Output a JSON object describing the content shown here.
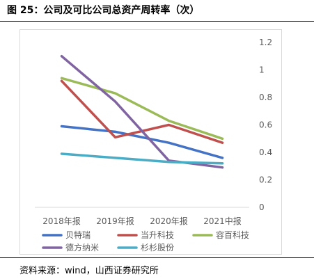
{
  "figure": {
    "title": "图 25：公司及可比公司总资产周转率（次）",
    "source": "资料来源：wind，山西证券研究所"
  },
  "chart_data": {
    "type": "line",
    "title": "",
    "xlabel": "",
    "ylabel": "",
    "categories": [
      "2018年报",
      "2019年报",
      "2020年报",
      "2021中报"
    ],
    "ylim": [
      0,
      1.2
    ],
    "yticks": [
      "0",
      "0.2",
      "0.4",
      "0.6",
      "0.8",
      "1",
      "1.2"
    ],
    "y_axis_side": "right",
    "grid": false,
    "legend_position": "bottom",
    "series": [
      {
        "name": "贝特瑞",
        "color": "#4472C4",
        "values": [
          0.59,
          0.55,
          0.47,
          0.36
        ]
      },
      {
        "name": "当升科技",
        "color": "#C0504D",
        "values": [
          0.92,
          0.51,
          0.6,
          0.47
        ]
      },
      {
        "name": "容百科技",
        "color": "#9BBB59",
        "values": [
          0.94,
          0.83,
          0.63,
          0.5
        ]
      },
      {
        "name": "德方纳米",
        "color": "#8064A2",
        "values": [
          1.1,
          0.77,
          0.34,
          0.29
        ]
      },
      {
        "name": "杉杉股份",
        "color": "#4BACC6",
        "values": [
          0.39,
          0.36,
          0.33,
          0.32
        ]
      }
    ]
  }
}
